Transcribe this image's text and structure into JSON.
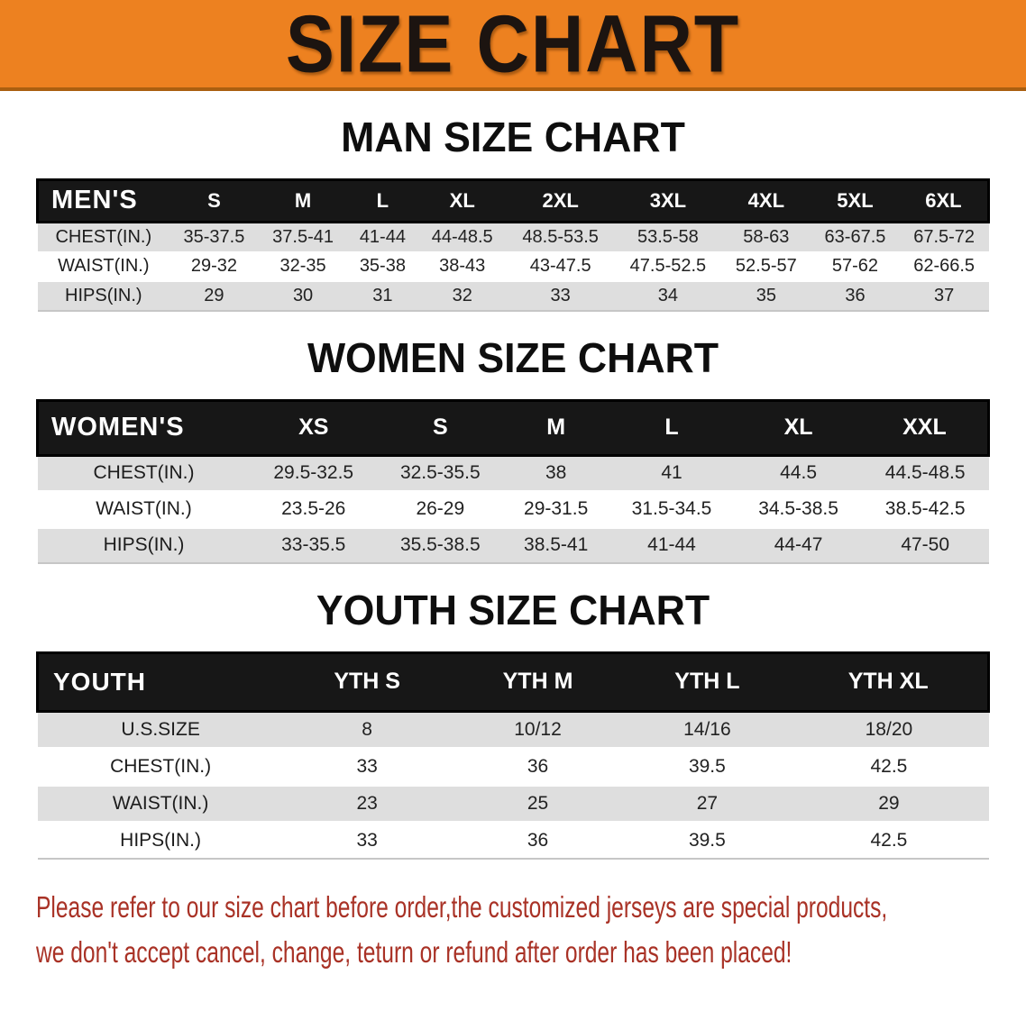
{
  "banner": {
    "title": "SIZE CHART"
  },
  "colors": {
    "banner_orange": "#ED8120",
    "header_bar_black": "#171717",
    "row_stripe_gray": "#DEDEDE",
    "footer_red": "#A93226"
  },
  "sections": [
    {
      "id": "mens",
      "heading": "MAN SIZE CHART",
      "table": {
        "corner_label": "MEN'S",
        "columns": [
          "S",
          "M",
          "L",
          "XL",
          "2XL",
          "3XL",
          "4XL",
          "5XL",
          "6XL"
        ],
        "rows": [
          {
            "label": "CHEST(IN.)",
            "values": [
              "35-37.5",
              "37.5-41",
              "41-44",
              "44-48.5",
              "48.5-53.5",
              "53.5-58",
              "58-63",
              "63-67.5",
              "67.5-72"
            ]
          },
          {
            "label": "WAIST(IN.)",
            "values": [
              "29-32",
              "32-35",
              "35-38",
              "38-43",
              "43-47.5",
              "47.5-52.5",
              "52.5-57",
              "57-62",
              "62-66.5"
            ]
          },
          {
            "label": "HIPS(IN.)",
            "values": [
              "29",
              "30",
              "31",
              "32",
              "33",
              "34",
              "35",
              "36",
              "37"
            ]
          }
        ]
      }
    },
    {
      "id": "womens",
      "heading": "WOMEN SIZE CHART",
      "table": {
        "corner_label": "WOMEN'S",
        "columns": [
          "XS",
          "S",
          "M",
          "L",
          "XL",
          "XXL"
        ],
        "rows": [
          {
            "label": "CHEST(IN.)",
            "values": [
              "29.5-32.5",
              "32.5-35.5",
              "38",
              "41",
              "44.5",
              "44.5-48.5"
            ]
          },
          {
            "label": "WAIST(IN.)",
            "values": [
              "23.5-26",
              "26-29",
              "29-31.5",
              "31.5-34.5",
              "34.5-38.5",
              "38.5-42.5"
            ]
          },
          {
            "label": "HIPS(IN.)",
            "values": [
              "33-35.5",
              "35.5-38.5",
              "38.5-41",
              "41-44",
              "44-47",
              "47-50"
            ]
          }
        ]
      }
    },
    {
      "id": "youth",
      "heading": "YOUTH SIZE CHART",
      "table": {
        "corner_label": "YOUTH",
        "columns": [
          "YTH S",
          "YTH M",
          "YTH L",
          "YTH XL"
        ],
        "rows": [
          {
            "label": "U.S.SIZE",
            "values": [
              "8",
              "10/12",
              "14/16",
              "18/20"
            ]
          },
          {
            "label": "CHEST(IN.)",
            "values": [
              "33",
              "36",
              "39.5",
              "42.5"
            ]
          },
          {
            "label": "WAIST(IN.)",
            "values": [
              "23",
              "25",
              "27",
              "29"
            ]
          },
          {
            "label": "HIPS(IN.)",
            "values": [
              "33",
              "36",
              "39.5",
              "42.5"
            ]
          }
        ]
      }
    }
  ],
  "footer": {
    "line1": "Please refer to our size chart before order,the customized jerseys are special products,",
    "line2": "we don't accept cancel, change, teturn or refund after order has been placed!"
  }
}
